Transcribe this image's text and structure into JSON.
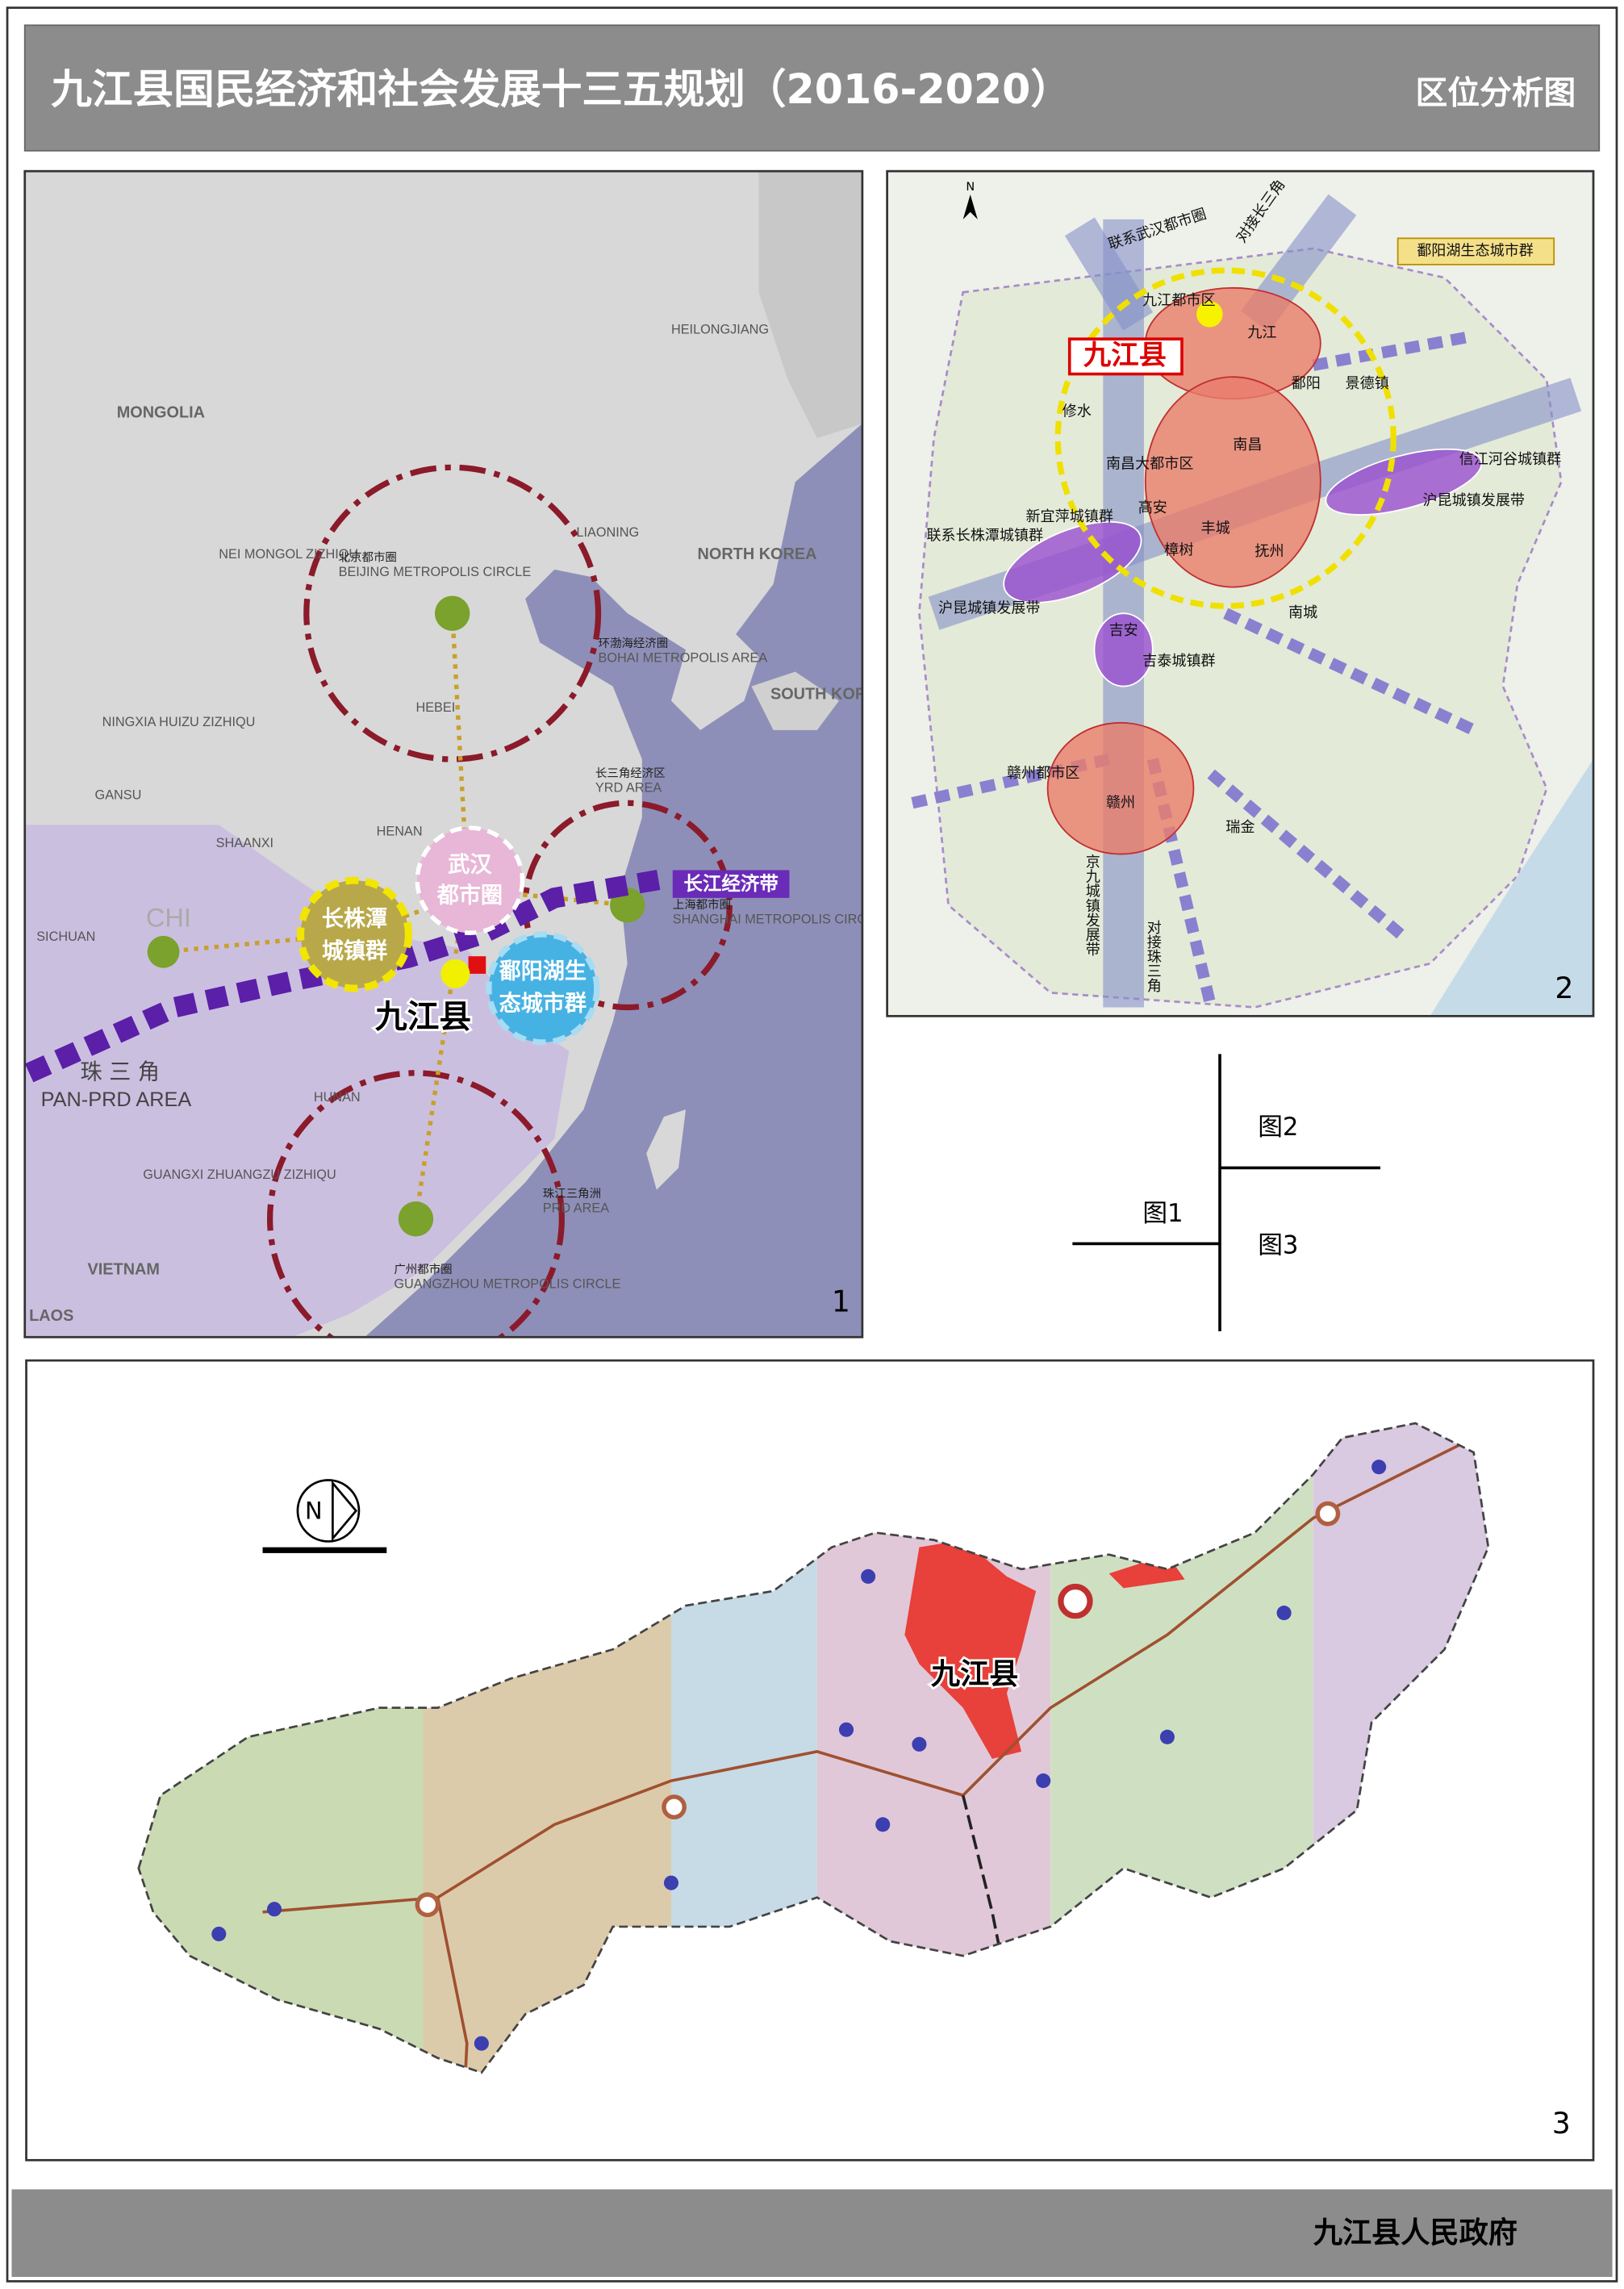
{
  "header": {
    "title": "九江县国民经济和社会发展十三五规划（2016-2020）",
    "subtitle": "区位分析图"
  },
  "map1": {
    "number": "1",
    "labels": [
      "MONGOLIA",
      "HEILONGJIANG",
      "NEI MONGOL ZIZHIQU",
      "LIAONING",
      "NORTH KOREA",
      "SOUTH KOREA",
      "HEBEI",
      "HENAN",
      "SHAANXI",
      "GANSU",
      "NINGXIA HUIZU ZIZHIQU",
      "SICHUAN",
      "HUNAN",
      "GUANGXI ZHUANGZU ZIZHIQU",
      "VIETNAM",
      "LAOS",
      "北京都市圈",
      "BEIJING METROPOLIS CIRCLE",
      "环渤海经济圈",
      "BOHAI METROPOLIS AREA",
      "长三角经济区",
      "YRD AREA",
      "上海都市圈",
      "SHANGHAI METROPOLIS CIRCLE",
      "珠江三角洲",
      "PRD AREA",
      "广州都市圈",
      "GUANGZHOU METROPOLIS CIRCLE",
      "珠 三 角",
      "PAN-PRD AREA",
      "武汉",
      "都市圈",
      "长株潭",
      "城镇群",
      "鄱阳湖生",
      "态城市群",
      "九江县",
      "长江经济带",
      "CHI"
    ]
  },
  "map2": {
    "number": "2",
    "north": "N",
    "labels": [
      "联系武汉都市圈",
      "对接长三角",
      "鄱阳湖生态城市群",
      "九江都市区",
      "九江县",
      "九江",
      "鄱阳",
      "景德镇",
      "修水",
      "南昌大都市区",
      "南昌",
      "新宜萍城镇群",
      "联系长株潭城镇群",
      "沪昆城镇发展带",
      "信江河谷城镇群",
      "沪昆城镇发展带",
      "吉安",
      "吉泰城镇群",
      "南城",
      "赣州都市区",
      "赣州",
      "瑞金",
      "京九城镇发展带",
      "对接珠三角",
      "高安",
      "丰城",
      "樟树",
      "抚州"
    ]
  },
  "map3": {
    "number": "3",
    "north": "N",
    "labels": [
      "九江县"
    ]
  },
  "index": {
    "labels": [
      "图2",
      "图1",
      "图3"
    ]
  },
  "footer": {
    "text": "九江县人民政府"
  }
}
